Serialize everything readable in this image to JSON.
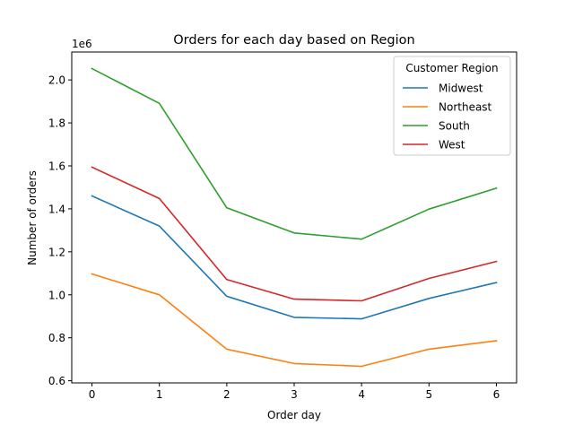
{
  "chart_data": {
    "type": "line",
    "title": "Orders for each day based on Region",
    "xlabel": "Order day",
    "ylabel": "Number of orders",
    "y_offset_label": "1e6",
    "x": [
      0,
      1,
      2,
      3,
      4,
      5,
      6
    ],
    "xlim": [
      -0.3,
      6.3
    ],
    "ylim": [
      0.59,
      2.13
    ],
    "y_scale": 1000000,
    "yticks": [
      0.6,
      0.8,
      1.0,
      1.2,
      1.4,
      1.6,
      1.8,
      2.0
    ],
    "ytick_labels": [
      "0.6",
      "0.8",
      "1.0",
      "1.2",
      "1.4",
      "1.6",
      "1.8",
      "2.0"
    ],
    "xtick_labels": [
      "0",
      "1",
      "2",
      "3",
      "4",
      "5",
      "6"
    ],
    "grid": false,
    "legend": {
      "title": "Customer Region",
      "placement": "top-right"
    },
    "series": [
      {
        "name": "Midwest",
        "color": "#1f77b4",
        "values": [
          1460000,
          1320000,
          993000,
          895000,
          888000,
          983000,
          1057000
        ]
      },
      {
        "name": "Northeast",
        "color": "#ff7f0e",
        "values": [
          1097000,
          1000000,
          747000,
          680000,
          667000,
          747000,
          786000
        ]
      },
      {
        "name": "South",
        "color": "#2ca02c",
        "values": [
          2053000,
          1891000,
          1405000,
          1288000,
          1259000,
          1399000,
          1496000
        ]
      },
      {
        "name": "West",
        "color": "#d62728",
        "values": [
          1594000,
          1448000,
          1071000,
          980000,
          972000,
          1076000,
          1155000
        ]
      }
    ]
  }
}
